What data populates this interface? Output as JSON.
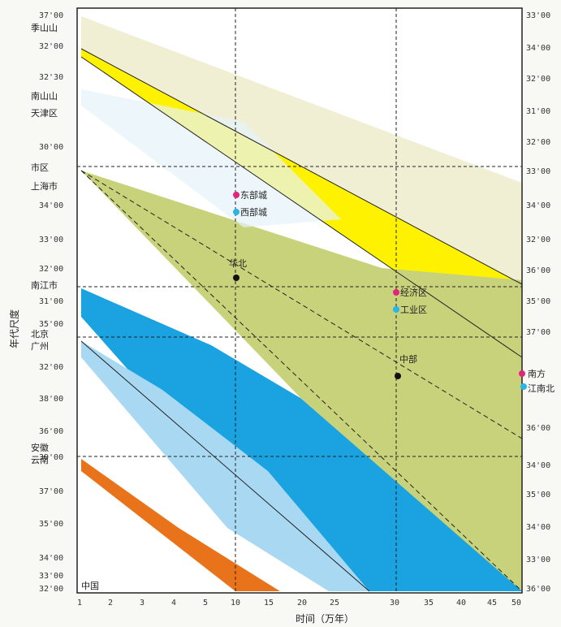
{
  "diagram": {
    "y_axis_title": "年代尺度",
    "x_axis_title": "时间（万年）",
    "colors": {
      "frame": "#222222",
      "grid": "#222222",
      "band_top": "#f1efd3",
      "band_yellow": "#fff200",
      "band_olive": "#c8d27a",
      "band_blue": "#1aa3e0",
      "band_lightblue": "#a9d9f2",
      "band_orange": "#e8731a",
      "marker_pink": "#e2257f",
      "marker_cyan": "#29b6e6",
      "marker_black": "#111111"
    },
    "left_ticks": [
      "37'00",
      "32'00",
      "32'30",
      "30'00",
      "34'00",
      "33'00",
      "32'00",
      "31'00",
      "35'00",
      "32'00",
      "38'00",
      "36'00",
      "39'00",
      "37'00",
      "35'00",
      "34'00",
      "33'00",
      "32'00"
    ],
    "right_ticks": [
      "33'00",
      "34'00",
      "32'00",
      "31'00",
      "32'00",
      "33'00",
      "34'00",
      "32'00",
      "36'00",
      "35'00",
      "37'00",
      "36'00",
      "34'00",
      "35'00",
      "34'00",
      "33'00",
      "36'00"
    ],
    "bottom_ticks": [
      "1",
      "2",
      "3",
      "4",
      "5",
      "10",
      "15",
      "20",
      "25",
      "30",
      "35",
      "40",
      "45",
      "50"
    ],
    "left_labels": [
      "季山山",
      "南山山",
      "天津区",
      "市区",
      "上海市",
      "南江市",
      "北京",
      "广州",
      "安徽",
      "云南"
    ],
    "markers": [
      {
        "label": "东部城",
        "color": "pink"
      },
      {
        "label": "西部城",
        "color": "cyan"
      },
      {
        "label": "华北",
        "color": "black"
      },
      {
        "label": "经济区",
        "color": "pink"
      },
      {
        "label": "工业区",
        "color": "cyan"
      },
      {
        "label": "中部",
        "color": "black"
      },
      {
        "label": "南方",
        "color": "pink"
      },
      {
        "label": "江南北",
        "color": "cyan"
      }
    ],
    "corner_label": "中国"
  }
}
